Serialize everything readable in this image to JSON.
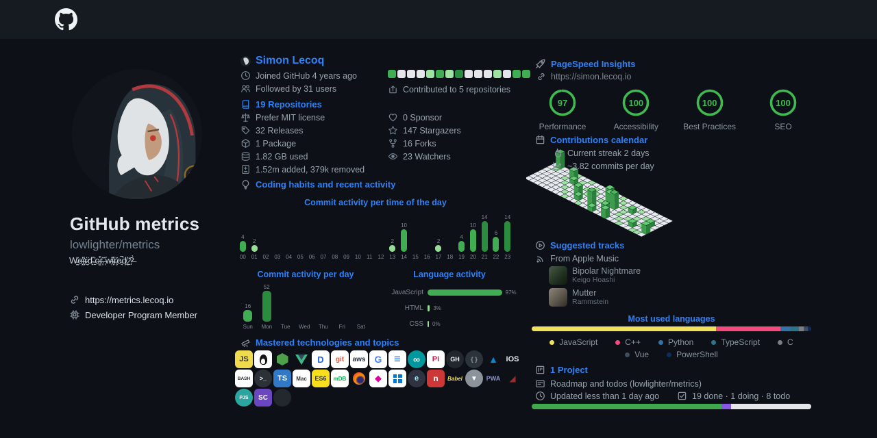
{
  "profile": {
    "title": "GitHub metrics",
    "subtitle": "lowlighter/metrics",
    "bio": "W̵̰̆e̶͓̓i̶̟̒r̷̼̈d̴̘̋ ̵̱̓o̶̳͒r̴̞̂ ̶͎̋w̶̜̓i̵̟̽r̵̥̆e̵̘̚d̸̪̈ ̷͍̒?̶̣̀",
    "website": "https://metrics.lecoq.io",
    "membership": "Developer Program Member"
  },
  "user": {
    "name": "Simon Lecoq",
    "joined": "Joined GitHub 4 years ago",
    "followed": "Followed by 31 users",
    "repositories": "19 Repositories",
    "license": "Prefer MIT license",
    "releases": "32 Releases",
    "package": "1 Package",
    "disk": "1.82 GB used",
    "diff": "1.52m added, 379k removed",
    "contributed": "Contributed to 5 repositories",
    "sponsors": "0 Sponsor",
    "stargazers": "147 Stargazers",
    "forks": "16 Forks",
    "watchers": "23 Watchers"
  },
  "sections": {
    "habits": "Coding habits and recent activity",
    "mastered": "Mastered technologies and topics",
    "pagespeed": "PageSpeed Insights",
    "calendar": "Contributions calendar",
    "tracks": "Suggested tracks",
    "project": "1 Project"
  },
  "pagespeed": {
    "url": "https://simon.lecoq.io"
  },
  "calendar": {
    "streak": "Current streak 2 days",
    "average": "~3.82 commits per day"
  },
  "tracks": {
    "source": "From Apple Music",
    "items": [
      {
        "title": "Bipolar Nightmare",
        "artist": "Keigo Hoashi"
      },
      {
        "title": "Mutter",
        "artist": "Rammstein"
      }
    ]
  },
  "project": {
    "name": "Roadmap and todos (lowlighter/metrics)",
    "updated": "Updated less than 1 day ago",
    "status": "19 done · 1 doing · 8 todo"
  },
  "icons_legend": [
    "github-logo",
    "clock-icon",
    "people-icon",
    "repo-icon",
    "law-icon",
    "tag-icon",
    "package-icon",
    "database-icon",
    "diff-icon",
    "contributed-icon",
    "heart-icon",
    "star-icon",
    "fork-icon",
    "eye-icon",
    "bulb-icon",
    "telescope-icon",
    "rocket-icon",
    "link-icon",
    "calendar-icon",
    "flame-icon",
    "graph-icon",
    "play-icon",
    "rss-icon",
    "project-icon",
    "note-icon",
    "tasklist-icon",
    "cpu-icon"
  ],
  "mastered_icons": [
    [
      {
        "n": "javascript",
        "t": "JS",
        "bg": "#f0db4f",
        "fg": "#323330",
        "fs": 11
      },
      {
        "n": "linux",
        "bg": "#ffffff",
        "art": "linux"
      },
      {
        "n": "nodejs",
        "art": "node"
      },
      {
        "n": "vuejs",
        "art": "vue"
      },
      {
        "n": "docker",
        "t": "D",
        "bg": "#ffffff",
        "fg": "#1d63ed",
        "fs": 13
      },
      {
        "n": "git",
        "t": "git",
        "bg": "#ffffff",
        "fg": "#f05133",
        "fs": 10
      },
      {
        "n": "aws",
        "t": "aws",
        "bg": "#ffffff",
        "fg": "#232f3e",
        "fs": 10
      },
      {
        "n": "google",
        "t": "G",
        "bg": "#ffffff",
        "fg": "#4285f4",
        "fs": 14
      },
      {
        "n": "sql-database",
        "t": "≡",
        "bg": "#ffffff",
        "fg": "#1f6feb",
        "fs": 17
      },
      {
        "n": "arduino",
        "t": "∞",
        "bg": "#00979d",
        "fg": "#ffffff",
        "sh": "circ",
        "fs": 14
      },
      {
        "n": "raspberry-pi",
        "t": "Pi",
        "bg": "#ffffff",
        "fg": "#c51a4a",
        "fs": 11
      },
      {
        "n": "github",
        "t": "GH",
        "bg": "#22272e",
        "fg": "#f0f3f6",
        "sh": "circ",
        "fs": 9
      },
      {
        "n": "json",
        "t": "{ }",
        "bg": "#2d333b",
        "fg": "#8b949e",
        "sh": "circ",
        "fs": 9
      },
      {
        "n": "azure",
        "t": "▲",
        "fg": "#0089d6",
        "fs": 14
      },
      {
        "n": "ios",
        "t": "iOS",
        "fg": "#e6edf3",
        "fs": 11
      }
    ],
    [
      {
        "n": "bash",
        "t": "BASH",
        "bg": "#ffffff",
        "fg": "#2b3137",
        "fs": 6.5
      },
      {
        "n": "terminal",
        "t": ">_",
        "bg": "#2b3137",
        "fg": "#e6edf3",
        "sh": "circ",
        "fs": 9
      },
      {
        "n": "typescript",
        "t": "TS",
        "bg": "#3178c6",
        "fg": "#ffffff",
        "fs": 11
      },
      {
        "n": "macos",
        "t": "Mac",
        "bg": "#ffffff",
        "fg": "#333333",
        "fs": 8
      },
      {
        "n": "es6",
        "t": "ES6",
        "bg": "#f7df1e",
        "fg": "#323330",
        "fs": 9
      },
      {
        "n": "mongodb",
        "t": "mDB",
        "bg": "#ffffff",
        "fg": "#13aa52",
        "fs": 8
      },
      {
        "n": "firefox",
        "art": "firefox"
      },
      {
        "n": "graphql",
        "t": "◆",
        "bg": "#ffffff",
        "fg": "#e10098",
        "fs": 13
      },
      {
        "n": "windows",
        "bg": "#ffffff",
        "art": "windows"
      },
      {
        "n": "electron",
        "t": "e",
        "bg": "#2f3241",
        "fg": "#9feaf9",
        "sh": "circ",
        "fs": 11
      },
      {
        "n": "npm",
        "t": "n",
        "bg": "#cb3837",
        "fg": "#ffffff",
        "fs": 12
      },
      {
        "n": "babel",
        "t": "Babel",
        "fg": "#f5da55",
        "fs": 8,
        "it": 1
      },
      {
        "n": "vercel",
        "t": "▼",
        "bg": "#8b939b",
        "fg": "#ffffff",
        "sh": "circ",
        "fs": 10
      },
      {
        "n": "pwa",
        "t": "PWA",
        "fg": "#8d93c8",
        "fs": 9
      },
      {
        "n": "red-emblem",
        "t": "◢",
        "fg": "#9e2a2b",
        "fs": 12
      }
    ],
    [
      {
        "n": "p5js",
        "t": "PJS",
        "bg": "#2aa5a0",
        "fg": "#ffffff",
        "sh": "circ",
        "fs": 7
      },
      {
        "n": "styled-components",
        "t": "SC",
        "bg": "#6b46c1",
        "fg": "#ffffff",
        "fs": 10
      },
      {
        "n": "dark-disc",
        "t": "",
        "bg": "#23282e",
        "sh": "circ"
      }
    ]
  ],
  "chart_data": [
    {
      "id": "commit_hours",
      "type": "bar",
      "title": "Commit activity per time of the day",
      "categories": [
        "00",
        "01",
        "02",
        "03",
        "04",
        "05",
        "06",
        "07",
        "08",
        "09",
        "10",
        "11",
        "12",
        "13",
        "14",
        "15",
        "16",
        "17",
        "18",
        "19",
        "20",
        "21",
        "22",
        "23"
      ],
      "values": [
        4,
        2,
        0,
        0,
        0,
        0,
        0,
        0,
        0,
        0,
        0,
        0,
        0,
        2,
        10,
        0,
        0,
        2,
        0,
        4,
        10,
        14,
        6,
        14
      ],
      "ylim": [
        0,
        14
      ],
      "grid": false
    },
    {
      "id": "commit_days",
      "type": "bar",
      "title": "Commit activity per day",
      "categories": [
        "Sun",
        "Mon",
        "Tue",
        "Wed",
        "Thu",
        "Fri",
        "Sat"
      ],
      "values": [
        16,
        52,
        0,
        0,
        0,
        0,
        0
      ],
      "ylim": [
        0,
        52
      ],
      "grid": false
    },
    {
      "id": "language_activity",
      "type": "bar",
      "title": "Language activity",
      "categories": [
        "JavaScript",
        "HTML",
        "CSS"
      ],
      "values": [
        97,
        3,
        0
      ],
      "unit": "%"
    },
    {
      "id": "pagespeed_gauges",
      "type": "pie",
      "values": [
        {
          "label": "Performance",
          "value": 97,
          "max": 100
        },
        {
          "label": "Accessibility",
          "value": 100,
          "max": 100
        },
        {
          "label": "Best Practices",
          "value": 100,
          "max": 100
        },
        {
          "label": "SEO",
          "value": 100,
          "max": 100
        }
      ]
    },
    {
      "id": "contribution_squares",
      "type": "heatmap",
      "values": [
        "mid",
        "none",
        "none",
        "none",
        "light",
        "mid",
        "light",
        "dark",
        "none",
        "none",
        "none",
        "light",
        "none",
        "mid",
        "mid"
      ]
    },
    {
      "id": "isometric_calendar",
      "type": "heatmap",
      "rows": 7,
      "cols": 26,
      "cells": [
        [
          0,
          1,
          4
        ],
        [
          0,
          5,
          1
        ],
        [
          0,
          8,
          1
        ],
        [
          0,
          12,
          2
        ],
        [
          0,
          15,
          1
        ],
        [
          1,
          1,
          1
        ],
        [
          1,
          5,
          3
        ],
        [
          1,
          7,
          1
        ],
        [
          1,
          10,
          1
        ],
        [
          1,
          13,
          2
        ],
        [
          1,
          16,
          1
        ],
        [
          1,
          20,
          1
        ],
        [
          2,
          4,
          1
        ],
        [
          2,
          6,
          2
        ],
        [
          2,
          9,
          1
        ],
        [
          2,
          11,
          1
        ],
        [
          2,
          14,
          3
        ],
        [
          2,
          17,
          1
        ],
        [
          2,
          19,
          2
        ],
        [
          2,
          22,
          1
        ],
        [
          3,
          5,
          1
        ],
        [
          3,
          8,
          2
        ],
        [
          3,
          10,
          1
        ],
        [
          3,
          13,
          1
        ],
        [
          3,
          16,
          4
        ],
        [
          3,
          18,
          1
        ],
        [
          3,
          21,
          1
        ],
        [
          3,
          24,
          2
        ],
        [
          4,
          6,
          1
        ],
        [
          4,
          9,
          3
        ],
        [
          4,
          12,
          1
        ],
        [
          4,
          15,
          2
        ],
        [
          4,
          18,
          1
        ],
        [
          4,
          20,
          1
        ],
        [
          4,
          23,
          1
        ],
        [
          5,
          7,
          1
        ],
        [
          5,
          10,
          2
        ],
        [
          5,
          13,
          4
        ],
        [
          5,
          16,
          1
        ],
        [
          5,
          19,
          1
        ],
        [
          5,
          22,
          2
        ],
        [
          5,
          25,
          3
        ],
        [
          6,
          8,
          1
        ],
        [
          6,
          11,
          1
        ],
        [
          6,
          14,
          2
        ],
        [
          6,
          17,
          3
        ],
        [
          6,
          20,
          1
        ],
        [
          6,
          23,
          1
        ],
        [
          6,
          24,
          1
        ]
      ]
    },
    {
      "id": "most_used_languages",
      "type": "bar",
      "title": "Most used languages",
      "series": [
        {
          "name": "JavaScript",
          "value": 66,
          "color": "#f1e05a"
        },
        {
          "name": "C++",
          "value": 23,
          "color": "#f34b7d"
        },
        {
          "name": "Python",
          "value": 3.5,
          "color": "#3572a5"
        },
        {
          "name": "TypeScript",
          "value": 3,
          "color": "#2b7489"
        },
        {
          "name": "C",
          "value": 1.8,
          "color": "#7a7f85"
        },
        {
          "name": "Vue",
          "value": 1.5,
          "color": "#3c4e5f"
        },
        {
          "name": "PowerShell",
          "value": 1.2,
          "color": "#0b2e5f"
        }
      ],
      "legend_rows": [
        5,
        2
      ],
      "legend_position": "bottom"
    },
    {
      "id": "project_progress",
      "type": "bar",
      "series": [
        {
          "name": "done",
          "value": 19,
          "color": "#3fa84f"
        },
        {
          "name": "doing",
          "value": 1,
          "color": "#8957e5"
        },
        {
          "name": "todo",
          "value": 8,
          "color": "#e4e6e9"
        }
      ]
    }
  ]
}
